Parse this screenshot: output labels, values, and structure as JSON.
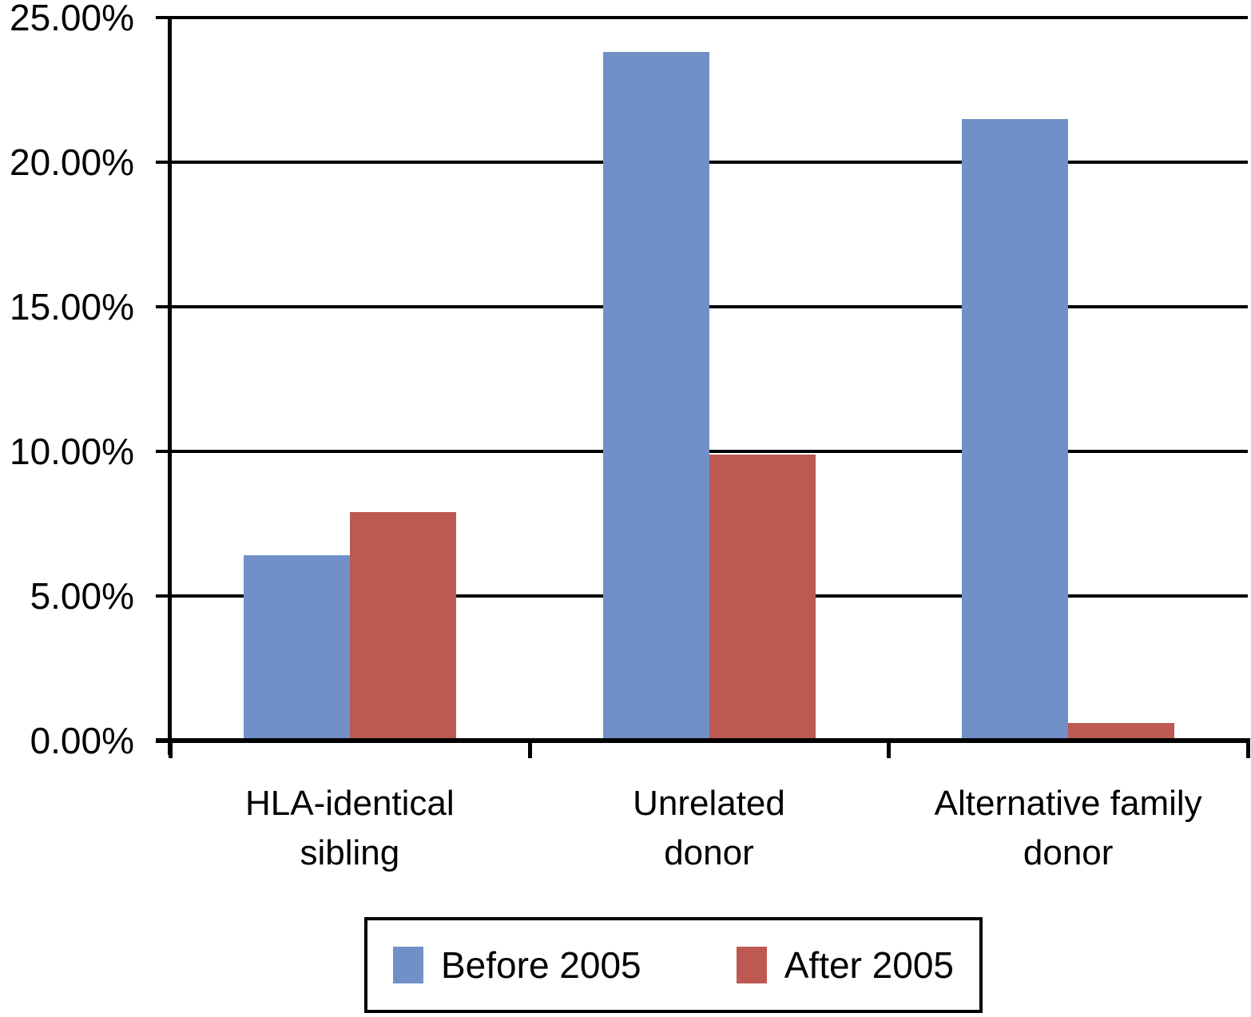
{
  "chart_data": {
    "type": "bar",
    "title": "",
    "xlabel": "",
    "ylabel": "",
    "categories": [
      "HLA-identical sibling",
      "Unrelated donor",
      "Alternative family donor"
    ],
    "category_label_lines": [
      [
        "HLA-identical",
        "sibling"
      ],
      [
        "Unrelated",
        "donor"
      ],
      [
        "Alternative family",
        "donor"
      ]
    ],
    "series": [
      {
        "name": "Before 2005",
        "color": "#7290C8",
        "values": [
          6.4,
          23.8,
          21.5
        ]
      },
      {
        "name": "After 2005",
        "color": "#BC5A52",
        "values": [
          7.9,
          9.9,
          0.6
        ]
      }
    ],
    "y_axis": {
      "ylim": [
        0,
        25
      ],
      "tick_step": 5,
      "ticks": [
        {
          "value": 0,
          "label": "0.00%"
        },
        {
          "value": 5,
          "label": "5.00%"
        },
        {
          "value": 10,
          "label": "10.00%"
        },
        {
          "value": 15,
          "label": "15.00%"
        },
        {
          "value": 20,
          "label": "20.00%"
        },
        {
          "value": 25,
          "label": "25.00%"
        }
      ]
    },
    "grid": true,
    "legend_position": "bottom",
    "axis_color": "#000000",
    "background_color": "#FFFFFF"
  }
}
